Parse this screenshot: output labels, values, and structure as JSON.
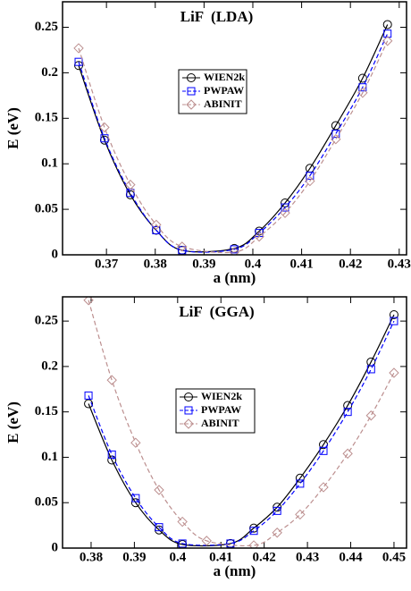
{
  "chart_data": [
    {
      "type": "line",
      "title": "LiF  (LDA)",
      "x_label": "a (nm)",
      "y_label": "E (eV)",
      "xlim": [
        0.361,
        0.4315
      ],
      "ylim": [
        0,
        0.278
      ],
      "xticks": [
        0.37,
        0.38,
        0.39,
        0.4,
        0.41,
        0.42,
        0.43
      ],
      "yticks": [
        0,
        0.05,
        0.1,
        0.15,
        0.2,
        0.25
      ],
      "legend": "upper center",
      "series": [
        {
          "name": "WIEN2k",
          "color": "#000000",
          "marker": "circle",
          "dash": "solid",
          "x": [
            0.3643,
            0.3696,
            0.3749,
            0.3802,
            0.3855,
            0.3962,
            0.4013,
            0.4066,
            0.4117,
            0.417,
            0.4225,
            0.4276
          ],
          "values": [
            0.208,
            0.126,
            0.066,
            0.027,
            0.005,
            0.007,
            0.026,
            0.057,
            0.095,
            0.142,
            0.194,
            0.253
          ]
        },
        {
          "name": "PWPAW",
          "color": "#0000ff",
          "marker": "square",
          "dash": "dashed",
          "x": [
            0.3643,
            0.3696,
            0.3749,
            0.3802,
            0.3855,
            0.3962,
            0.4013,
            0.4066,
            0.4117,
            0.417,
            0.4225,
            0.4276
          ],
          "values": [
            0.212,
            0.128,
            0.068,
            0.027,
            0.005,
            0.006,
            0.024,
            0.052,
            0.087,
            0.133,
            0.184,
            0.243
          ]
        },
        {
          "name": "ABINIT",
          "color": "#bc8f8f",
          "marker": "diamond",
          "dash": "dashed",
          "x": [
            0.3643,
            0.3696,
            0.3749,
            0.3802,
            0.3855,
            0.3962,
            0.4013,
            0.4066,
            0.4117,
            0.417,
            0.4225,
            0.4276
          ],
          "values": [
            0.227,
            0.14,
            0.077,
            0.033,
            0.009,
            0.003,
            0.02,
            0.046,
            0.081,
            0.127,
            0.178,
            0.235
          ]
        }
      ]
    },
    {
      "type": "line",
      "title": "LiF  (GGA)",
      "x_label": "a (nm)",
      "y_label": "E (eV)",
      "xlim": [
        0.3734,
        0.4529
      ],
      "ylim": [
        0,
        0.2767
      ],
      "xticks": [
        0.38,
        0.39,
        0.4,
        0.41,
        0.42,
        0.43,
        0.44,
        0.45
      ],
      "yticks": [
        0,
        0.05,
        0.1,
        0.15,
        0.2,
        0.25
      ],
      "legend": "center left",
      "series": [
        {
          "name": "WIEN2k",
          "color": "#000000",
          "marker": "circle",
          "dash": "solid",
          "x": [
            0.3794,
            0.3848,
            0.3903,
            0.3957,
            0.4011,
            0.4122,
            0.4176,
            0.423,
            0.4283,
            0.4337,
            0.4393,
            0.4447,
            0.45
          ],
          "values": [
            0.159,
            0.097,
            0.05,
            0.02,
            0.004,
            0.005,
            0.022,
            0.045,
            0.077,
            0.114,
            0.157,
            0.205,
            0.257
          ]
        },
        {
          "name": "PWPAW",
          "color": "#0000ff",
          "marker": "square",
          "dash": "dashed",
          "x": [
            0.3794,
            0.3848,
            0.3903,
            0.3957,
            0.4011,
            0.4122,
            0.4176,
            0.423,
            0.4283,
            0.4337,
            0.4393,
            0.4447,
            0.45
          ],
          "values": [
            0.168,
            0.103,
            0.055,
            0.023,
            0.005,
            0.005,
            0.019,
            0.041,
            0.071,
            0.107,
            0.15,
            0.197,
            0.25
          ]
        },
        {
          "name": "ABINIT",
          "color": "#bc8f8f",
          "marker": "diamond",
          "dash": "dashed",
          "x": [
            0.3794,
            0.3848,
            0.3903,
            0.3957,
            0.4011,
            0.4067,
            0.4176,
            0.423,
            0.4283,
            0.4337,
            0.4393,
            0.4447,
            0.45
          ],
          "values": [
            0.273,
            0.185,
            0.116,
            0.064,
            0.029,
            0.008,
            0.003,
            0.017,
            0.037,
            0.067,
            0.104,
            0.146,
            0.193
          ]
        }
      ]
    }
  ]
}
